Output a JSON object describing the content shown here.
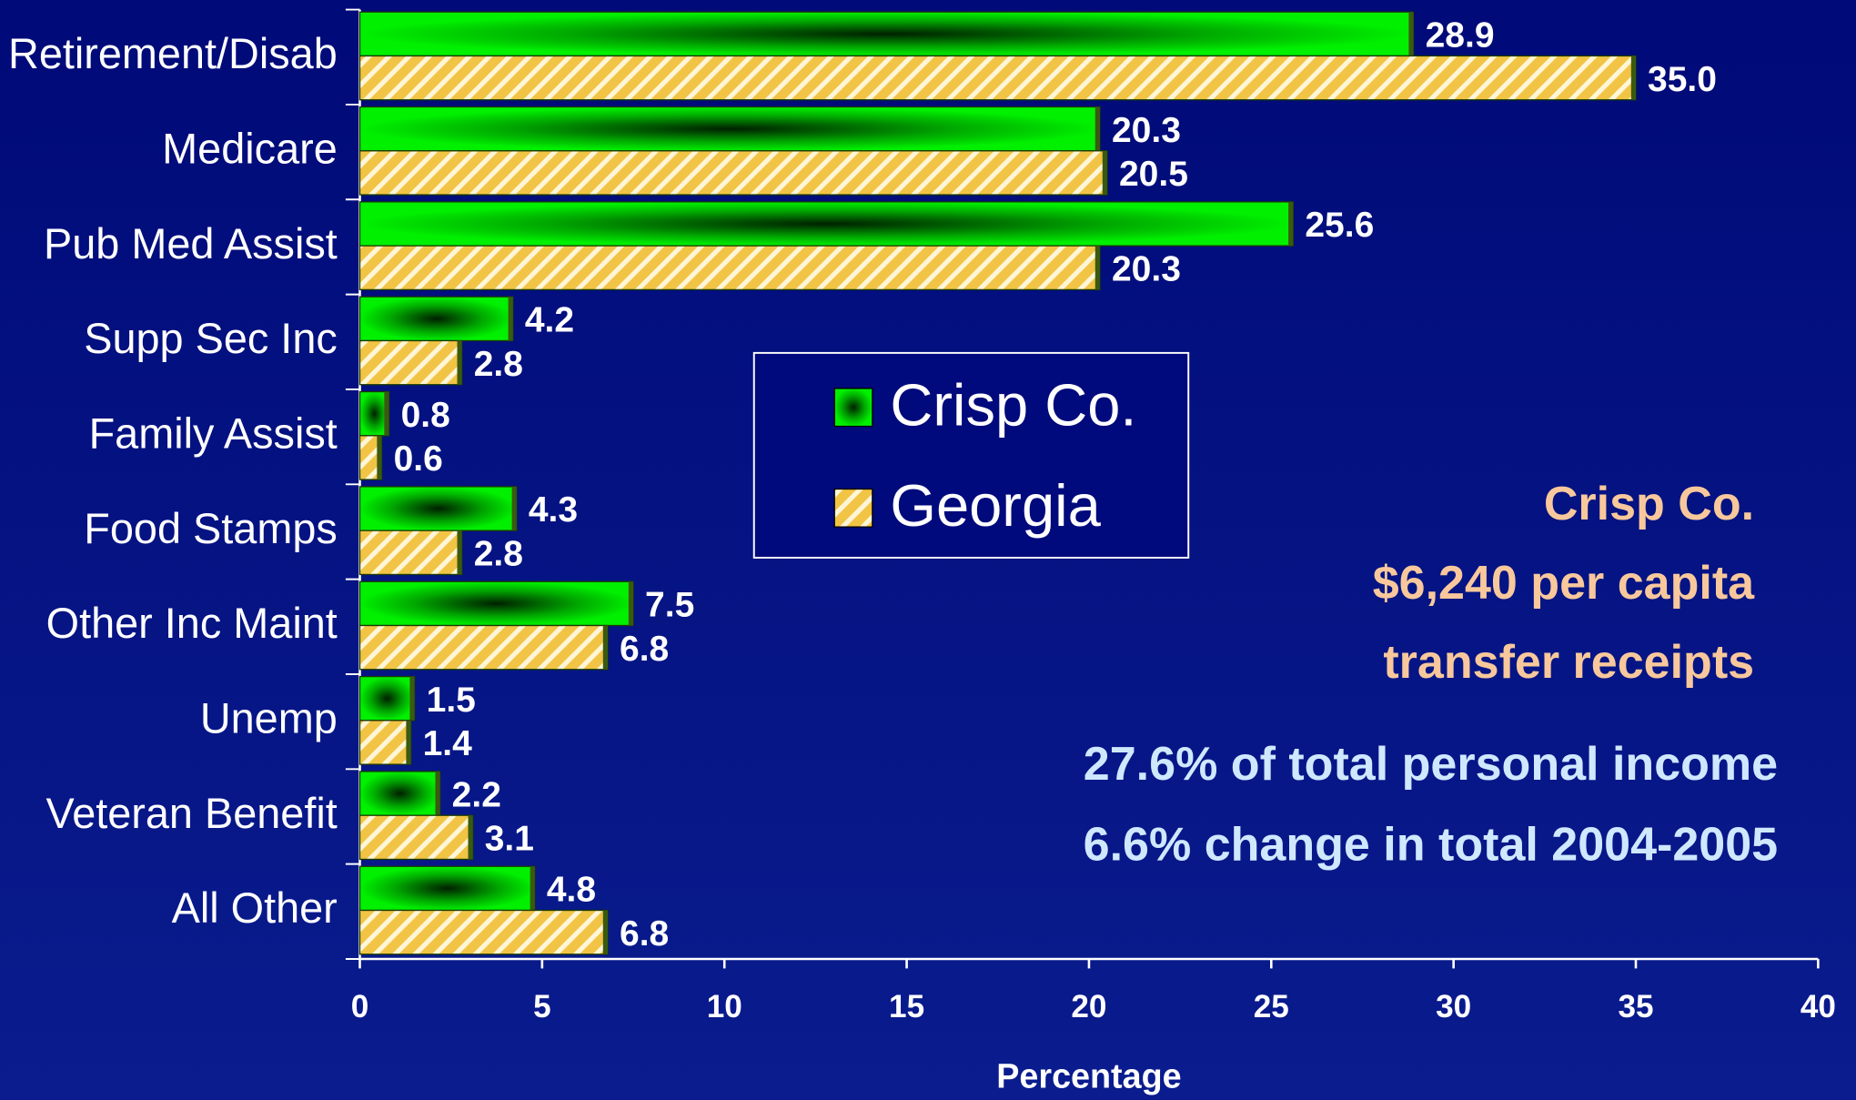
{
  "chart_data": {
    "type": "hbar",
    "categories": [
      "Retirement/Disab",
      "Medicare",
      "Pub Med Assist",
      "Supp Sec Inc",
      "Family Assist",
      "Food Stamps",
      "Other Inc Maint",
      "Unemp",
      "Veteran Benefit",
      "All Other"
    ],
    "series": [
      {
        "name": "Crisp Co.",
        "color": "#00e000",
        "values": [
          28.9,
          20.3,
          25.6,
          4.2,
          0.8,
          4.3,
          7.5,
          1.5,
          2.2,
          4.8
        ],
        "value_labels": [
          "28.9",
          "20.3",
          "25.6",
          "4.2",
          "0.8",
          "4.3",
          "7.5",
          "1.5",
          "2.2",
          "4.8"
        ]
      },
      {
        "name": "Georgia",
        "color": "#f2c445",
        "values": [
          35,
          20.5,
          20.3,
          2.8,
          0.6,
          2.8,
          6.8,
          1.4,
          3.1,
          6.8
        ],
        "value_labels": [
          "35.0",
          "20.5",
          "20.3",
          "2.8",
          "0.6",
          "2.8",
          "6.8",
          "1.4",
          "3.1",
          "6.8"
        ]
      }
    ],
    "xlim": [
      0,
      40
    ],
    "xticks": [
      0,
      5,
      10,
      15,
      20,
      25,
      30,
      35,
      40
    ],
    "xlabel": "Percentage",
    "legend": "center",
    "annotations": [
      {
        "text": "Crisp Co.",
        "color": "#f8c89c"
      },
      {
        "text": "$6,240 per capita",
        "color": "#f8c89c"
      },
      {
        "text": "transfer receipts",
        "color": "#f8c89c"
      },
      {
        "text": "27.6% of total personal income",
        "color": "#cfe8ff"
      },
      {
        "text": "6.6% change in total 2004-2005",
        "color": "#cfe8ff"
      }
    ]
  }
}
